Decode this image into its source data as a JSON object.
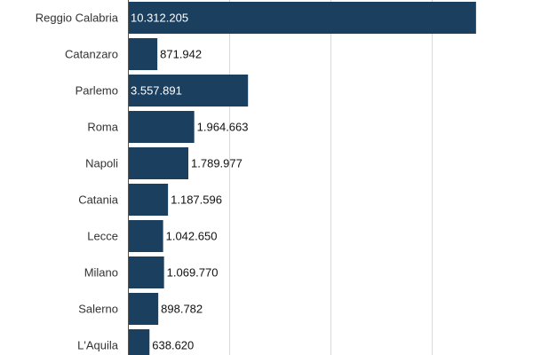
{
  "chart_data": {
    "type": "bar",
    "orientation": "horizontal",
    "categories": [
      "Reggio Calabria",
      "Catanzaro",
      "Parlemo",
      "Roma",
      "Napoli",
      "Catania",
      "Lecce",
      "Milano",
      "Salerno",
      "L'Aquila"
    ],
    "values": [
      10312205,
      871942,
      3557891,
      1964663,
      1789977,
      1187596,
      1042650,
      1069770,
      898782,
      638620
    ],
    "value_labels": [
      "10.312.205",
      "871.942",
      "3.557.891",
      "1.964.663",
      "1.789.977",
      "1.187.596",
      "1.042.650",
      "1.069.770",
      "898.782",
      "638.620"
    ],
    "xlim": [
      0,
      12000000
    ],
    "gridline_values": [
      3000000,
      6000000,
      9000000,
      12000000
    ],
    "grid": true,
    "legend": "none",
    "title": "",
    "xlabel": "",
    "ylabel": "",
    "colors": {
      "bar": "#1b3f5e",
      "grid": "#d9d9d9",
      "axis": "#555555",
      "label_inside": "#ffffff",
      "label_outside": "#111111",
      "category_text": "#333333"
    }
  }
}
